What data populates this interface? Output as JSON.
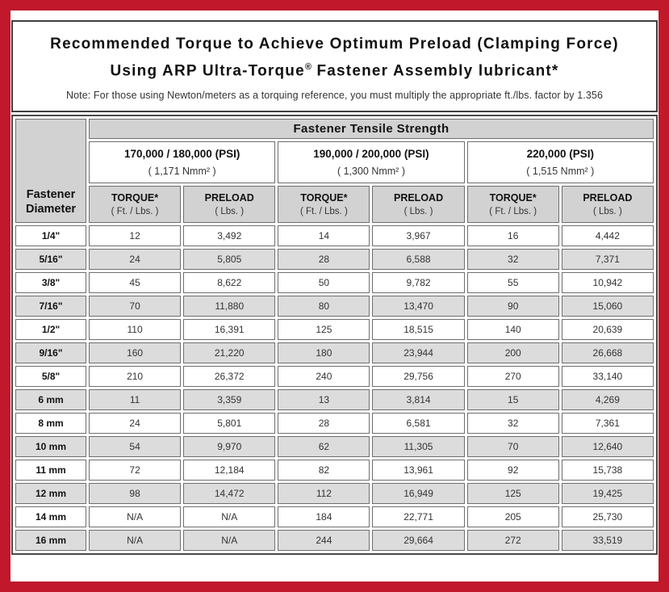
{
  "title": {
    "line1": "Recommended Torque to Achieve Optimum Preload (Clamping Force)",
    "line2_pre": "Using ARP Ultra-Torque",
    "line2_sup": "®",
    "line2_post": " Fastener Assembly lubricant*",
    "note": "Note: For those using Newton/meters as a torquing reference, you must multiply the appropriate ft./lbs. factor by 1.356"
  },
  "table": {
    "corner_line1": "Fastener",
    "corner_line2": "Diameter",
    "main_header": "Fastener Tensile Strength",
    "groups": [
      {
        "psi": "170,000 / 180,000 (PSI)",
        "nmm": "( 1,171 Nmm² )"
      },
      {
        "psi": "190,000 / 200,000 (PSI)",
        "nmm": "( 1,300 Nmm² )"
      },
      {
        "psi": "220,000 (PSI)",
        "nmm": "( 1,515 Nmm² )"
      }
    ],
    "sub": {
      "torque_label": "TORQUE*",
      "torque_unit": "( Ft. / Lbs. )",
      "preload_label": "PRELOAD",
      "preload_unit": "( Lbs. )"
    },
    "rows": [
      {
        "diameter": "1/4\"",
        "values": [
          "12",
          "3,492",
          "14",
          "3,967",
          "16",
          "4,442"
        ]
      },
      {
        "diameter": "5/16\"",
        "values": [
          "24",
          "5,805",
          "28",
          "6,588",
          "32",
          "7,371"
        ]
      },
      {
        "diameter": "3/8\"",
        "values": [
          "45",
          "8,622",
          "50",
          "9,782",
          "55",
          "10,942"
        ]
      },
      {
        "diameter": "7/16\"",
        "values": [
          "70",
          "11,880",
          "80",
          "13,470",
          "90",
          "15,060"
        ]
      },
      {
        "diameter": "1/2\"",
        "values": [
          "110",
          "16,391",
          "125",
          "18,515",
          "140",
          "20,639"
        ]
      },
      {
        "diameter": "9/16\"",
        "values": [
          "160",
          "21,220",
          "180",
          "23,944",
          "200",
          "26,668"
        ]
      },
      {
        "diameter": "5/8\"",
        "values": [
          "210",
          "26,372",
          "240",
          "29,756",
          "270",
          "33,140"
        ]
      },
      {
        "diameter": "6 mm",
        "values": [
          "11",
          "3,359",
          "13",
          "3,814",
          "15",
          "4,269"
        ]
      },
      {
        "diameter": "8 mm",
        "values": [
          "24",
          "5,801",
          "28",
          "6,581",
          "32",
          "7,361"
        ]
      },
      {
        "diameter": "10 mm",
        "values": [
          "54",
          "9,970",
          "62",
          "11,305",
          "70",
          "12,640"
        ]
      },
      {
        "diameter": "11 mm",
        "values": [
          "72",
          "12,184",
          "82",
          "13,961",
          "92",
          "15,738"
        ]
      },
      {
        "diameter": "12 mm",
        "values": [
          "98",
          "14,472",
          "112",
          "16,949",
          "125",
          "19,425"
        ]
      },
      {
        "diameter": "14 mm",
        "values": [
          "N/A",
          "N/A",
          "184",
          "22,771",
          "205",
          "25,730"
        ]
      },
      {
        "diameter": "16 mm",
        "values": [
          "N/A",
          "N/A",
          "244",
          "29,664",
          "272",
          "33,519"
        ]
      }
    ]
  },
  "colors": {
    "frame_red": "#c1182b",
    "header_gray": "#d2d2d2",
    "row_alt_gray": "#dcdcdc",
    "cell_border": "#6e6e6e"
  }
}
